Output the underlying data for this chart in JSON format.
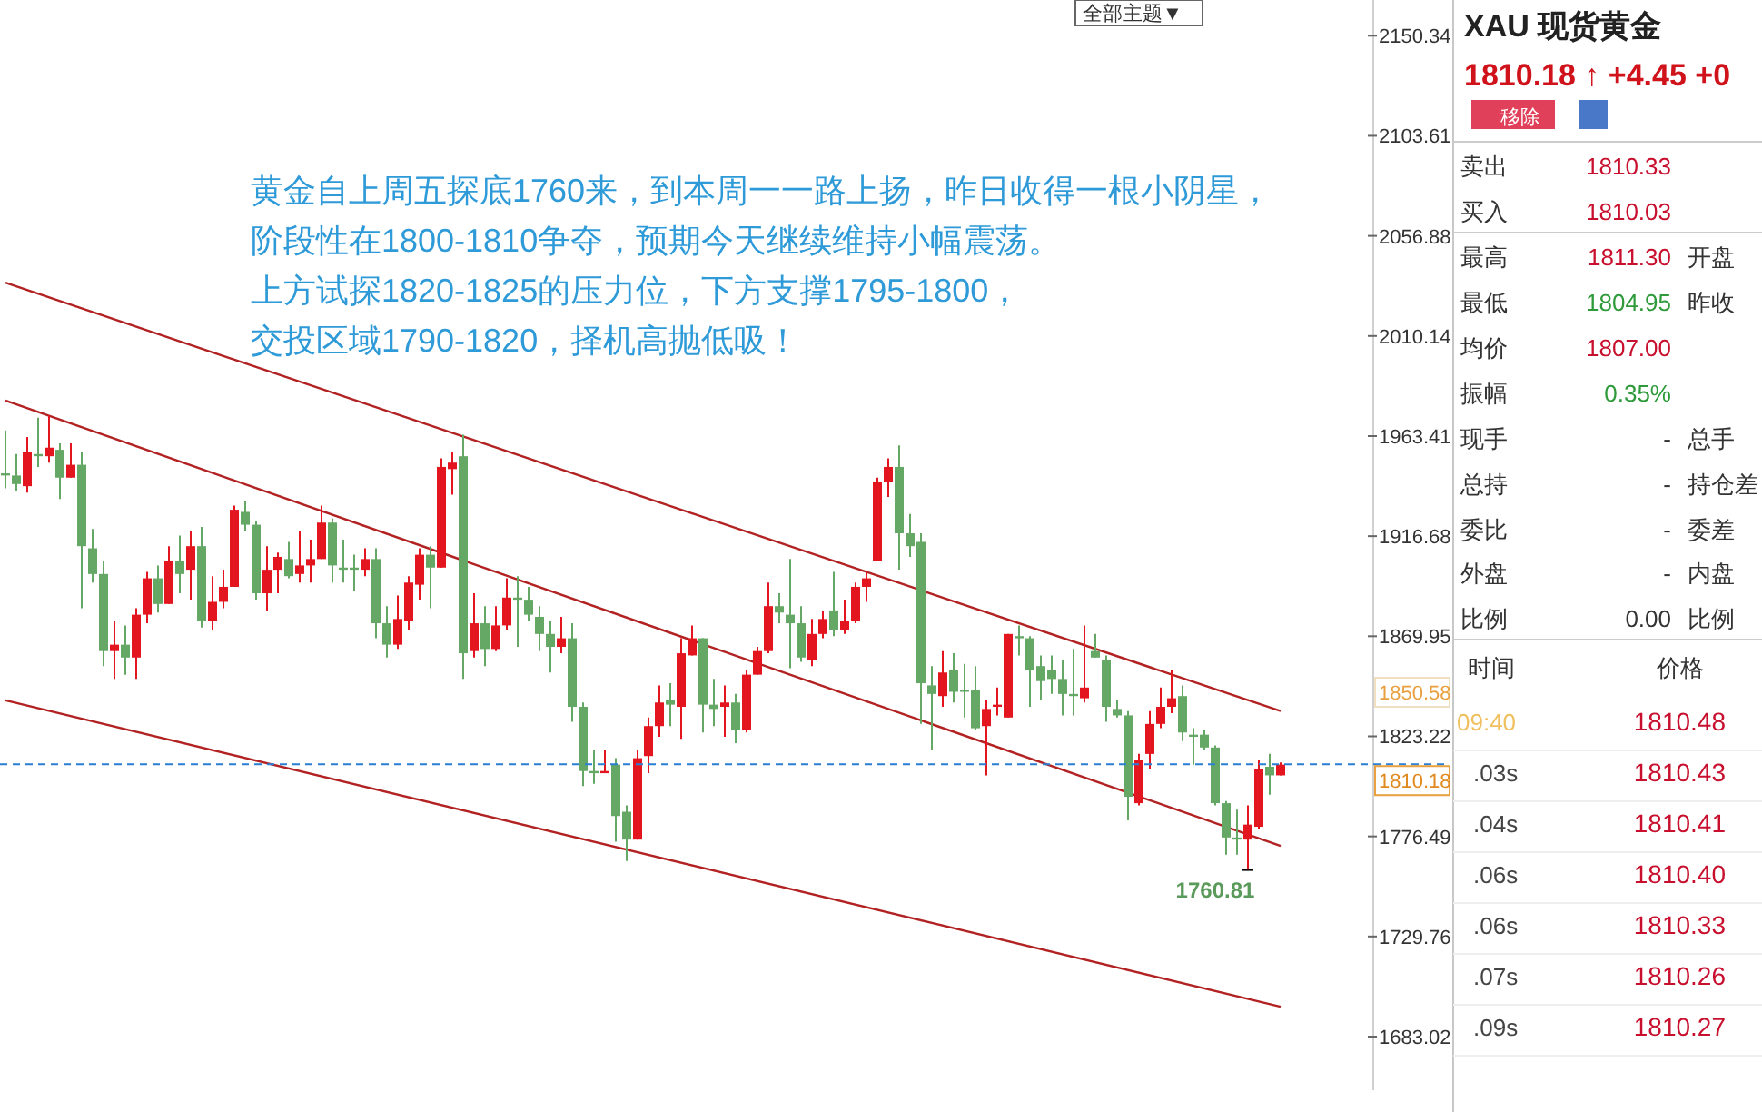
{
  "chart_data": [
    {
      "type": "candlestick",
      "categories": [
        null,
        null,
        null,
        null,
        null,
        null,
        null,
        null,
        null,
        null,
        null,
        null,
        null,
        null,
        null,
        null,
        null,
        null,
        null,
        null,
        null,
        null,
        null,
        null,
        null,
        null,
        null,
        null,
        null,
        null,
        null,
        null,
        null,
        null,
        null,
        null,
        null,
        null,
        null,
        null,
        null,
        null,
        null,
        null,
        null,
        null,
        null,
        null,
        null,
        null,
        null,
        null,
        null,
        null,
        null,
        null,
        null,
        null,
        null,
        null,
        null,
        null,
        null,
        null,
        null,
        null,
        null,
        null,
        null,
        null,
        null,
        null,
        null,
        null,
        null,
        null,
        null,
        null,
        null,
        null,
        null,
        null,
        null,
        null,
        null,
        null,
        null,
        null,
        null,
        null,
        null,
        null,
        null,
        null,
        null,
        null,
        null,
        null,
        null,
        null,
        null,
        null,
        null,
        null,
        null,
        null,
        null,
        null,
        null,
        null,
        null,
        null,
        null,
        null,
        null,
        null,
        null,
        null
      ],
      "ohlc": [
        [
          1946,
          1966,
          1939,
          1945
        ],
        [
          1945,
          1955,
          1938,
          1941
        ],
        [
          1940,
          1963,
          1937,
          1956
        ],
        [
          1955,
          1972,
          1949,
          1954
        ],
        [
          1954,
          1973,
          1951,
          1958
        ],
        [
          1957,
          1960,
          1934,
          1944
        ],
        [
          1944,
          1960,
          1944,
          1950
        ],
        [
          1950,
          1956,
          1883,
          1912
        ],
        [
          1911,
          1920,
          1895,
          1899
        ],
        [
          1899,
          1905,
          1856,
          1863
        ],
        [
          1863,
          1877,
          1850,
          1866
        ],
        [
          1866,
          1875,
          1852,
          1860
        ],
        [
          1860,
          1883,
          1850,
          1880
        ],
        [
          1880,
          1900,
          1876,
          1897
        ],
        [
          1897,
          1903,
          1881,
          1885
        ],
        [
          1885,
          1912,
          1885,
          1905
        ],
        [
          1905,
          1917,
          1890,
          1899
        ],
        [
          1901,
          1919,
          1887,
          1912
        ],
        [
          1912,
          1921,
          1874,
          1877
        ],
        [
          1877,
          1898,
          1873,
          1886
        ],
        [
          1886,
          1901,
          1883,
          1893
        ],
        [
          1893,
          1931,
          1893,
          1929
        ],
        [
          1928,
          1933,
          1919,
          1922
        ],
        [
          1922,
          1924,
          1887,
          1890
        ],
        [
          1890,
          1912,
          1882,
          1901
        ],
        [
          1901,
          1909,
          1890,
          1907
        ],
        [
          1906,
          1914,
          1897,
          1898
        ],
        [
          1899,
          1919,
          1895,
          1903
        ],
        [
          1903,
          1915,
          1895,
          1906
        ],
        [
          1906,
          1931,
          1906,
          1923
        ],
        [
          1923,
          1925,
          1895,
          1903
        ],
        [
          1902,
          1915,
          1895,
          1901
        ],
        [
          1902,
          1908,
          1891,
          1901
        ],
        [
          1901,
          1911,
          1898,
          1906
        ],
        [
          1906,
          1911,
          1869,
          1876
        ],
        [
          1876,
          1884,
          1860,
          1866
        ],
        [
          1866,
          1889,
          1864,
          1878
        ],
        [
          1877,
          1898,
          1873,
          1895
        ],
        [
          1894,
          1911,
          1887,
          1908
        ],
        [
          1908,
          1912,
          1883,
          1902
        ],
        [
          1902,
          1953,
          1902,
          1949
        ],
        [
          1948,
          1956,
          1936,
          1951
        ],
        [
          1954,
          1964,
          1850,
          1862
        ],
        [
          1863,
          1890,
          1860,
          1876
        ],
        [
          1876,
          1884,
          1856,
          1864
        ],
        [
          1864,
          1884,
          1863,
          1875
        ],
        [
          1875,
          1897,
          1873,
          1888
        ],
        [
          1888,
          1898,
          1865,
          1887
        ],
        [
          1887,
          1893,
          1877,
          1880
        ],
        [
          1879,
          1884,
          1863,
          1871
        ],
        [
          1871,
          1877,
          1853,
          1865
        ],
        [
          1865,
          1879,
          1862,
          1869
        ],
        [
          1869,
          1876,
          1830,
          1837
        ],
        [
          1837,
          1839,
          1800,
          1807
        ],
        [
          1807,
          1817,
          1801,
          1806
        ],
        [
          1806,
          1817,
          1806,
          1807
        ],
        [
          1810,
          1813,
          1774,
          1786
        ],
        [
          1788,
          1791,
          1765,
          1775
        ],
        [
          1775,
          1817,
          1775,
          1813
        ],
        [
          1814,
          1832,
          1806,
          1828
        ],
        [
          1828,
          1847,
          1823,
          1839
        ],
        [
          1840,
          1848,
          1828,
          1838
        ],
        [
          1837,
          1869,
          1822,
          1862
        ],
        [
          1861,
          1875,
          1861,
          1869
        ],
        [
          1869,
          1869,
          1825,
          1838
        ],
        [
          1838,
          1850,
          1828,
          1836
        ],
        [
          1837,
          1847,
          1823,
          1839
        ],
        [
          1839,
          1843,
          1820,
          1826
        ],
        [
          1826,
          1854,
          1825,
          1852
        ],
        [
          1852,
          1865,
          1852,
          1863
        ],
        [
          1863,
          1895,
          1862,
          1884
        ],
        [
          1884,
          1890,
          1876,
          1881
        ],
        [
          1880,
          1906,
          1855,
          1876
        ],
        [
          1876,
          1884,
          1858,
          1860
        ],
        [
          1859,
          1878,
          1856,
          1871
        ],
        [
          1871,
          1882,
          1869,
          1878
        ],
        [
          1882,
          1900,
          1870,
          1873
        ],
        [
          1873,
          1887,
          1871,
          1877
        ],
        [
          1877,
          1895,
          1876,
          1893
        ],
        [
          1893,
          1900,
          1886,
          1897
        ],
        [
          1905,
          1944,
          1905,
          1942
        ],
        [
          1942,
          1953,
          1935,
          1949
        ],
        [
          1949,
          1959,
          1901,
          1918
        ],
        [
          1918,
          1927,
          1907,
          1912
        ],
        [
          1914,
          1918,
          1829,
          1848
        ],
        [
          1847,
          1856,
          1817,
          1843
        ],
        [
          1842,
          1863,
          1837,
          1853
        ],
        [
          1854,
          1862,
          1839,
          1844
        ],
        [
          1845,
          1857,
          1832,
          1844
        ],
        [
          1845,
          1856,
          1826,
          1827
        ],
        [
          1828,
          1840,
          1805,
          1836
        ],
        [
          1837,
          1846,
          1833,
          1838
        ],
        [
          1832,
          1871,
          1832,
          1871
        ],
        [
          1870,
          1875,
          1861,
          1869
        ],
        [
          1869,
          1870,
          1837,
          1854
        ],
        [
          1856,
          1861,
          1840,
          1849
        ],
        [
          1854,
          1861,
          1843,
          1850
        ],
        [
          1850,
          1859,
          1833,
          1843
        ],
        [
          1843,
          1864,
          1833,
          1842
        ],
        [
          1841,
          1875,
          1839,
          1846
        ],
        [
          1863,
          1871,
          1860,
          1860
        ],
        [
          1859,
          1861,
          1830,
          1837
        ],
        [
          1836,
          1840,
          1832,
          1833
        ],
        [
          1833,
          1835,
          1784,
          1795
        ],
        [
          1792,
          1815,
          1791,
          1812
        ],
        [
          1815,
          1835,
          1808,
          1829
        ],
        [
          1829,
          1846,
          1827,
          1837
        ],
        [
          1837,
          1854,
          1834,
          1841
        ],
        [
          1842,
          1847,
          1821,
          1825
        ],
        [
          1824,
          1827,
          1810,
          1823
        ],
        [
          1824,
          1826,
          1817,
          1818
        ],
        [
          1818,
          1819,
          1791,
          1792
        ],
        [
          1792,
          1793,
          1768,
          1776
        ],
        [
          1776,
          1789,
          1768,
          1775
        ],
        [
          1775,
          1791,
          1760.81,
          1782
        ],
        [
          1781,
          1812,
          1780,
          1808
        ],
        [
          1809,
          1815,
          1796,
          1805
        ],
        [
          1805,
          1811,
          1805,
          1810
        ]
      ],
      "series": [
        {
          "type": "line",
          "values": [
            2035,
            null,
            null,
            null,
            null,
            null,
            null,
            null,
            null,
            null,
            null,
            null,
            null,
            null,
            null,
            null,
            null,
            null,
            null,
            null,
            null,
            null,
            null,
            null,
            null,
            null,
            null,
            null,
            null,
            null,
            null,
            null,
            null,
            null,
            null,
            null,
            null,
            null,
            null,
            null,
            null,
            null,
            null,
            null,
            null,
            null,
            null,
            null,
            null,
            null,
            null,
            null,
            null,
            null,
            null,
            null,
            null,
            null,
            null,
            null,
            null,
            null,
            null,
            null,
            null,
            null,
            null,
            null,
            null,
            null,
            null,
            null,
            null,
            null,
            null,
            null,
            null,
            null,
            null,
            null,
            null,
            null,
            null,
            null,
            null,
            null,
            null,
            null,
            null,
            null,
            null,
            null,
            null,
            null,
            null,
            null,
            null,
            null,
            null,
            null,
            null,
            null,
            null,
            null,
            null,
            null,
            null,
            null,
            null,
            null,
            null,
            null,
            null,
            null,
            null,
            null,
            null,
            1835
          ],
          "color": "#b22222"
        },
        {
          "type": "line",
          "values": [
            1980,
            null,
            null,
            null,
            null,
            null,
            null,
            null,
            null,
            null,
            null,
            null,
            null,
            null,
            null,
            null,
            null,
            null,
            null,
            null,
            null,
            null,
            null,
            null,
            null,
            null,
            null,
            null,
            null,
            null,
            null,
            null,
            null,
            null,
            null,
            null,
            null,
            null,
            null,
            null,
            null,
            null,
            null,
            null,
            null,
            null,
            null,
            null,
            null,
            null,
            null,
            null,
            null,
            null,
            null,
            null,
            null,
            null,
            null,
            null,
            null,
            null,
            null,
            null,
            null,
            null,
            null,
            null,
            null,
            null,
            null,
            null,
            null,
            null,
            null,
            null,
            null,
            null,
            null,
            null,
            null,
            null,
            null,
            null,
            null,
            null,
            null,
            null,
            null,
            null,
            null,
            null,
            null,
            null,
            null,
            null,
            null,
            null,
            null,
            null,
            null,
            null,
            null,
            null,
            null,
            null,
            null,
            null,
            null,
            null,
            null,
            null,
            null,
            null,
            null,
            null,
            null,
            1772
          ],
          "color": "#b22222"
        },
        {
          "type": "line",
          "values": [
            1840,
            null,
            null,
            null,
            null,
            null,
            null,
            null,
            null,
            null,
            null,
            null,
            null,
            null,
            null,
            null,
            null,
            null,
            null,
            null,
            null,
            null,
            null,
            null,
            null,
            null,
            null,
            null,
            null,
            null,
            null,
            null,
            null,
            null,
            null,
            null,
            null,
            null,
            null,
            null,
            null,
            null,
            null,
            null,
            null,
            null,
            null,
            null,
            null,
            null,
            null,
            null,
            null,
            null,
            null,
            null,
            null,
            null,
            null,
            null,
            null,
            null,
            null,
            null,
            null,
            null,
            null,
            null,
            null,
            null,
            null,
            null,
            null,
            null,
            null,
            null,
            null,
            null,
            null,
            null,
            null,
            null,
            null,
            null,
            null,
            null,
            null,
            null,
            null,
            null,
            null,
            null,
            null,
            null,
            null,
            null,
            null,
            null,
            null,
            null,
            null,
            null,
            null,
            null,
            null,
            null,
            null,
            null,
            null,
            null,
            null,
            null,
            null,
            null,
            null,
            null,
            null,
            1697
          ],
          "color": "#b22222"
        }
      ],
      "ylim": [
        1658,
        2167
      ],
      "yticks": [
        2150.34,
        2103.61,
        2056.88,
        2010.14,
        1963.41,
        1916.68,
        1869.95,
        1823.22,
        1776.49,
        1729.76,
        1683.02
      ],
      "ref_lines": [
        {
          "axis": "y",
          "value": 1810.18,
          "label": "1810.18",
          "color": "#2a7fd4",
          "line_style": "dashed"
        }
      ],
      "annotations": [
        "黄金自上周五探底1760来，到本周一一路上扬，昨日收得一根小阴星，",
        "阶段性在1800-1810争夺，预期今天继续维持小幅震荡。",
        "上方试探1820-1825的压力位，下方支撑1795-1800，",
        "交投区域1790-1820，择机高抛低吸！",
        "1850.58",
        "全部主题▼",
        "1760.81"
      ]
    },
    {
      "type": "other",
      "title": "XAU 现货黄金",
      "subtitle": "1810.18 ↑ +4.45 +0",
      "annotations": [
        "移除"
      ],
      "categories": [
        "卖出",
        "买入",
        "最高",
        "最低",
        "均价",
        "振幅",
        "现手",
        "总持",
        "委比",
        "外盘",
        "比例"
      ],
      "value_labels": [
        "1810.33",
        "1810.03",
        "1811.30",
        "1804.95",
        "1807.00",
        "0.35%",
        "-",
        "-",
        "-",
        "-",
        "0.00"
      ],
      "y2_categories": [
        null,
        null,
        "开盘",
        "昨收",
        null,
        null,
        "总手",
        "持仓差",
        "委差",
        "内盘",
        "比例"
      ],
      "colors": [
        "#c8102e",
        "#c8102e",
        "#c8102e",
        "#2e9a3a",
        "#c8102e",
        "#2e9a3a",
        "#333333",
        "#333333",
        "#333333",
        "#333333",
        "#333333"
      ]
    },
    {
      "type": "other",
      "categories": [
        "时间",
        "价格"
      ],
      "cell_labels": [
        [
          "09:40",
          "1810.48"
        ],
        [
          ".03s",
          "1810.43"
        ],
        [
          ".04s",
          "1810.41"
        ],
        [
          ".06s",
          "1810.40"
        ],
        [
          ".06s",
          "1810.33"
        ],
        [
          ".07s",
          "1810.26"
        ],
        [
          ".09s",
          "1810.27"
        ]
      ]
    }
  ]
}
